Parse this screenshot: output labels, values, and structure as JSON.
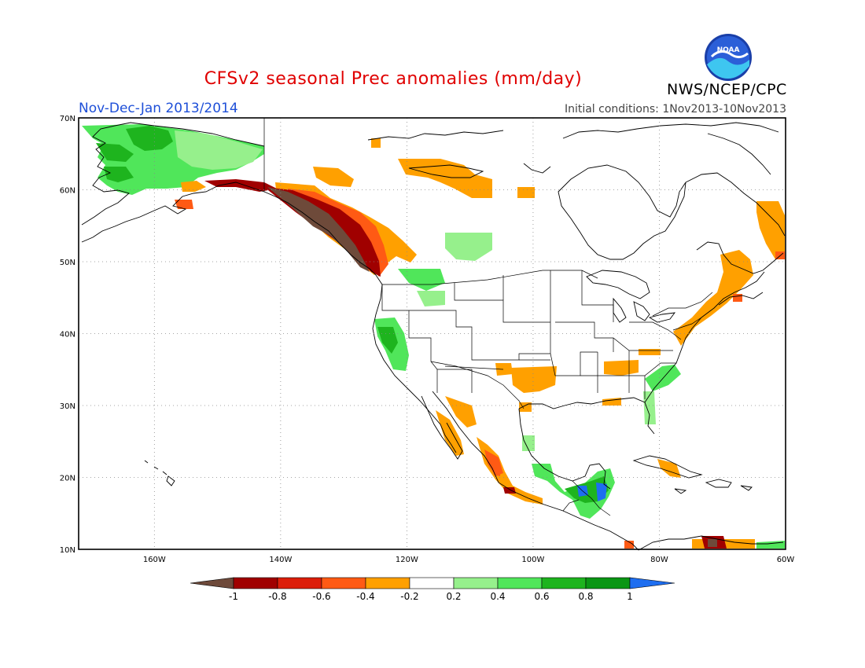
{
  "header": {
    "title": "CFSv2 seasonal Prec anomalies (mm/day)",
    "period": "Nov-Dec-Jan 2013/2014",
    "initial_conditions": "Initial conditions: 1Nov2013-10Nov2013",
    "agency": "NWS/NCEP/CPC",
    "logo_text": "NOAA"
  },
  "map": {
    "region": "North America",
    "lon_range": [
      -172,
      -60
    ],
    "lat_range": [
      10,
      70
    ],
    "lat_labels": [
      "70N",
      "60N",
      "50N",
      "40N",
      "30N",
      "20N",
      "10N"
    ],
    "lon_labels": [
      "160W",
      "140W",
      "120W",
      "100W",
      "80W",
      "60W"
    ],
    "grid": "dotted"
  },
  "colorbar": {
    "ticks": [
      "-1",
      "-0.8",
      "-0.6",
      "-0.4",
      "-0.2",
      "0.2",
      "0.4",
      "0.6",
      "0.8",
      "1"
    ],
    "colors": {
      "below_-1": "#6e4a3a",
      "-1_to_-0.8": "#a00000",
      "-0.8_to_-0.6": "#dc1e0a",
      "-0.6_to_-0.4": "#ff5a14",
      "-0.4_to_-0.2": "#ffa000",
      "-0.2_to_0.2": "#ffffff",
      "0.2_to_0.4": "#96f08c",
      "0.4_to_0.6": "#50e65a",
      "0.6_to_0.8": "#1eb41e",
      "0.8_to_1": "#0a9614",
      "above_1": "#1e6ef0"
    }
  }
}
